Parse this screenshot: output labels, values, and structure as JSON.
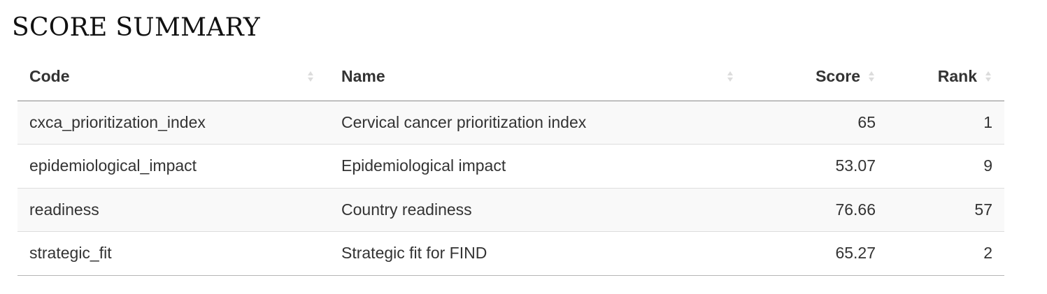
{
  "title": "SCORE SUMMARY",
  "table": {
    "columns": [
      {
        "label": "Code",
        "sortable": true
      },
      {
        "label": "Name",
        "sortable": true
      },
      {
        "label": "Score",
        "sortable": true
      },
      {
        "label": "Rank",
        "sortable": true
      }
    ],
    "rows": [
      {
        "code": "cxca_prioritization_index",
        "name": "Cervical cancer prioritization index",
        "score": "65",
        "rank": "1"
      },
      {
        "code": "epidemiological_impact",
        "name": "Epidemiological impact",
        "score": "53.07",
        "rank": "9"
      },
      {
        "code": "readiness",
        "name": "Country readiness",
        "score": "76.66",
        "rank": "57"
      },
      {
        "code": "strategic_fit",
        "name": "Strategic fit for FIND",
        "score": "65.27",
        "rank": "2"
      }
    ]
  },
  "colors": {
    "text": "#333333",
    "striped_row": "#f9f9f9",
    "sort_arrow": "#dcdcdc"
  }
}
